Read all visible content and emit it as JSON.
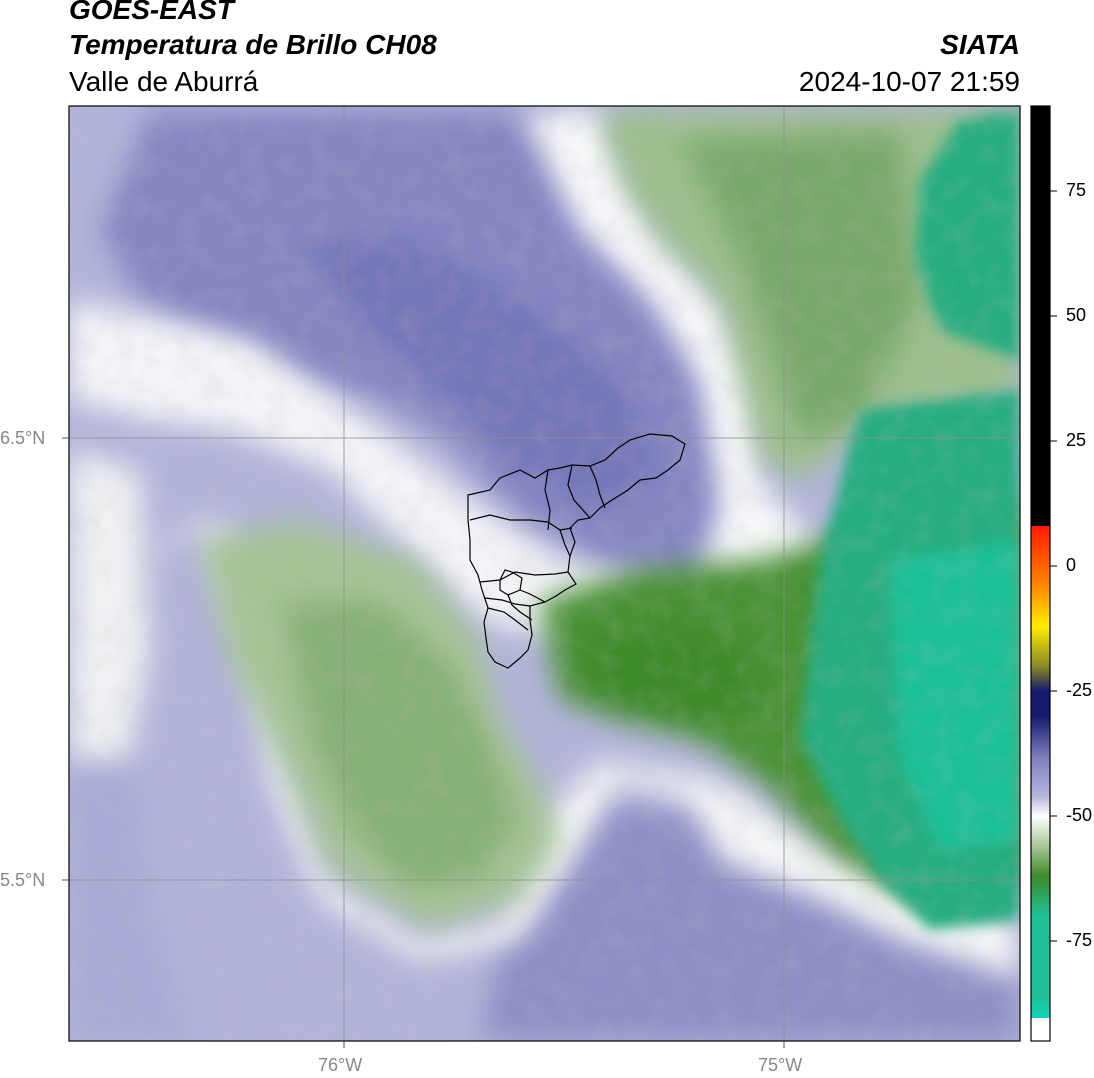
{
  "header": {
    "satellite": "GOES-EAST",
    "product": "Temperatura de Brillo CH08",
    "region": "Valle de Aburrá",
    "organization": "SIATA",
    "datetime": "2024-10-07 21:59"
  },
  "map": {
    "lat_labels": [
      "6.5°N",
      "5.5°N"
    ],
    "lon_labels": [
      "76°W",
      "75°W"
    ],
    "lat_range": [
      5.14,
      7.25
    ],
    "lon_range": [
      -76.62,
      -74.47
    ],
    "gridlines": true,
    "gridlines_lat": [
      6.5,
      5.5
    ],
    "gridlines_lon": [
      -76.0,
      -75.0
    ],
    "overlay": "Valle de Aburrá municipal boundaries"
  },
  "colorbar": {
    "ticks": [
      "75",
      "50",
      "25",
      "0",
      "-25",
      "-50",
      "-75"
    ],
    "tick_values": [
      75,
      50,
      25,
      0,
      -25,
      -50,
      -75
    ],
    "range": [
      -95,
      92
    ],
    "colors": {
      "cyan": "#00e8e0",
      "teal": "#1fc096",
      "dark_green": "#3e8a2a",
      "light_green": "#a7c79a",
      "white": "#ffffff",
      "lavender": "#b5b6dc",
      "purple": "#7b7cbc",
      "navy": "#151a6e",
      "olive": "#8a8a25",
      "yellow": "#ffee00",
      "orange": "#ff8800",
      "red": "#ff1a00",
      "black": "#000000"
    }
  }
}
